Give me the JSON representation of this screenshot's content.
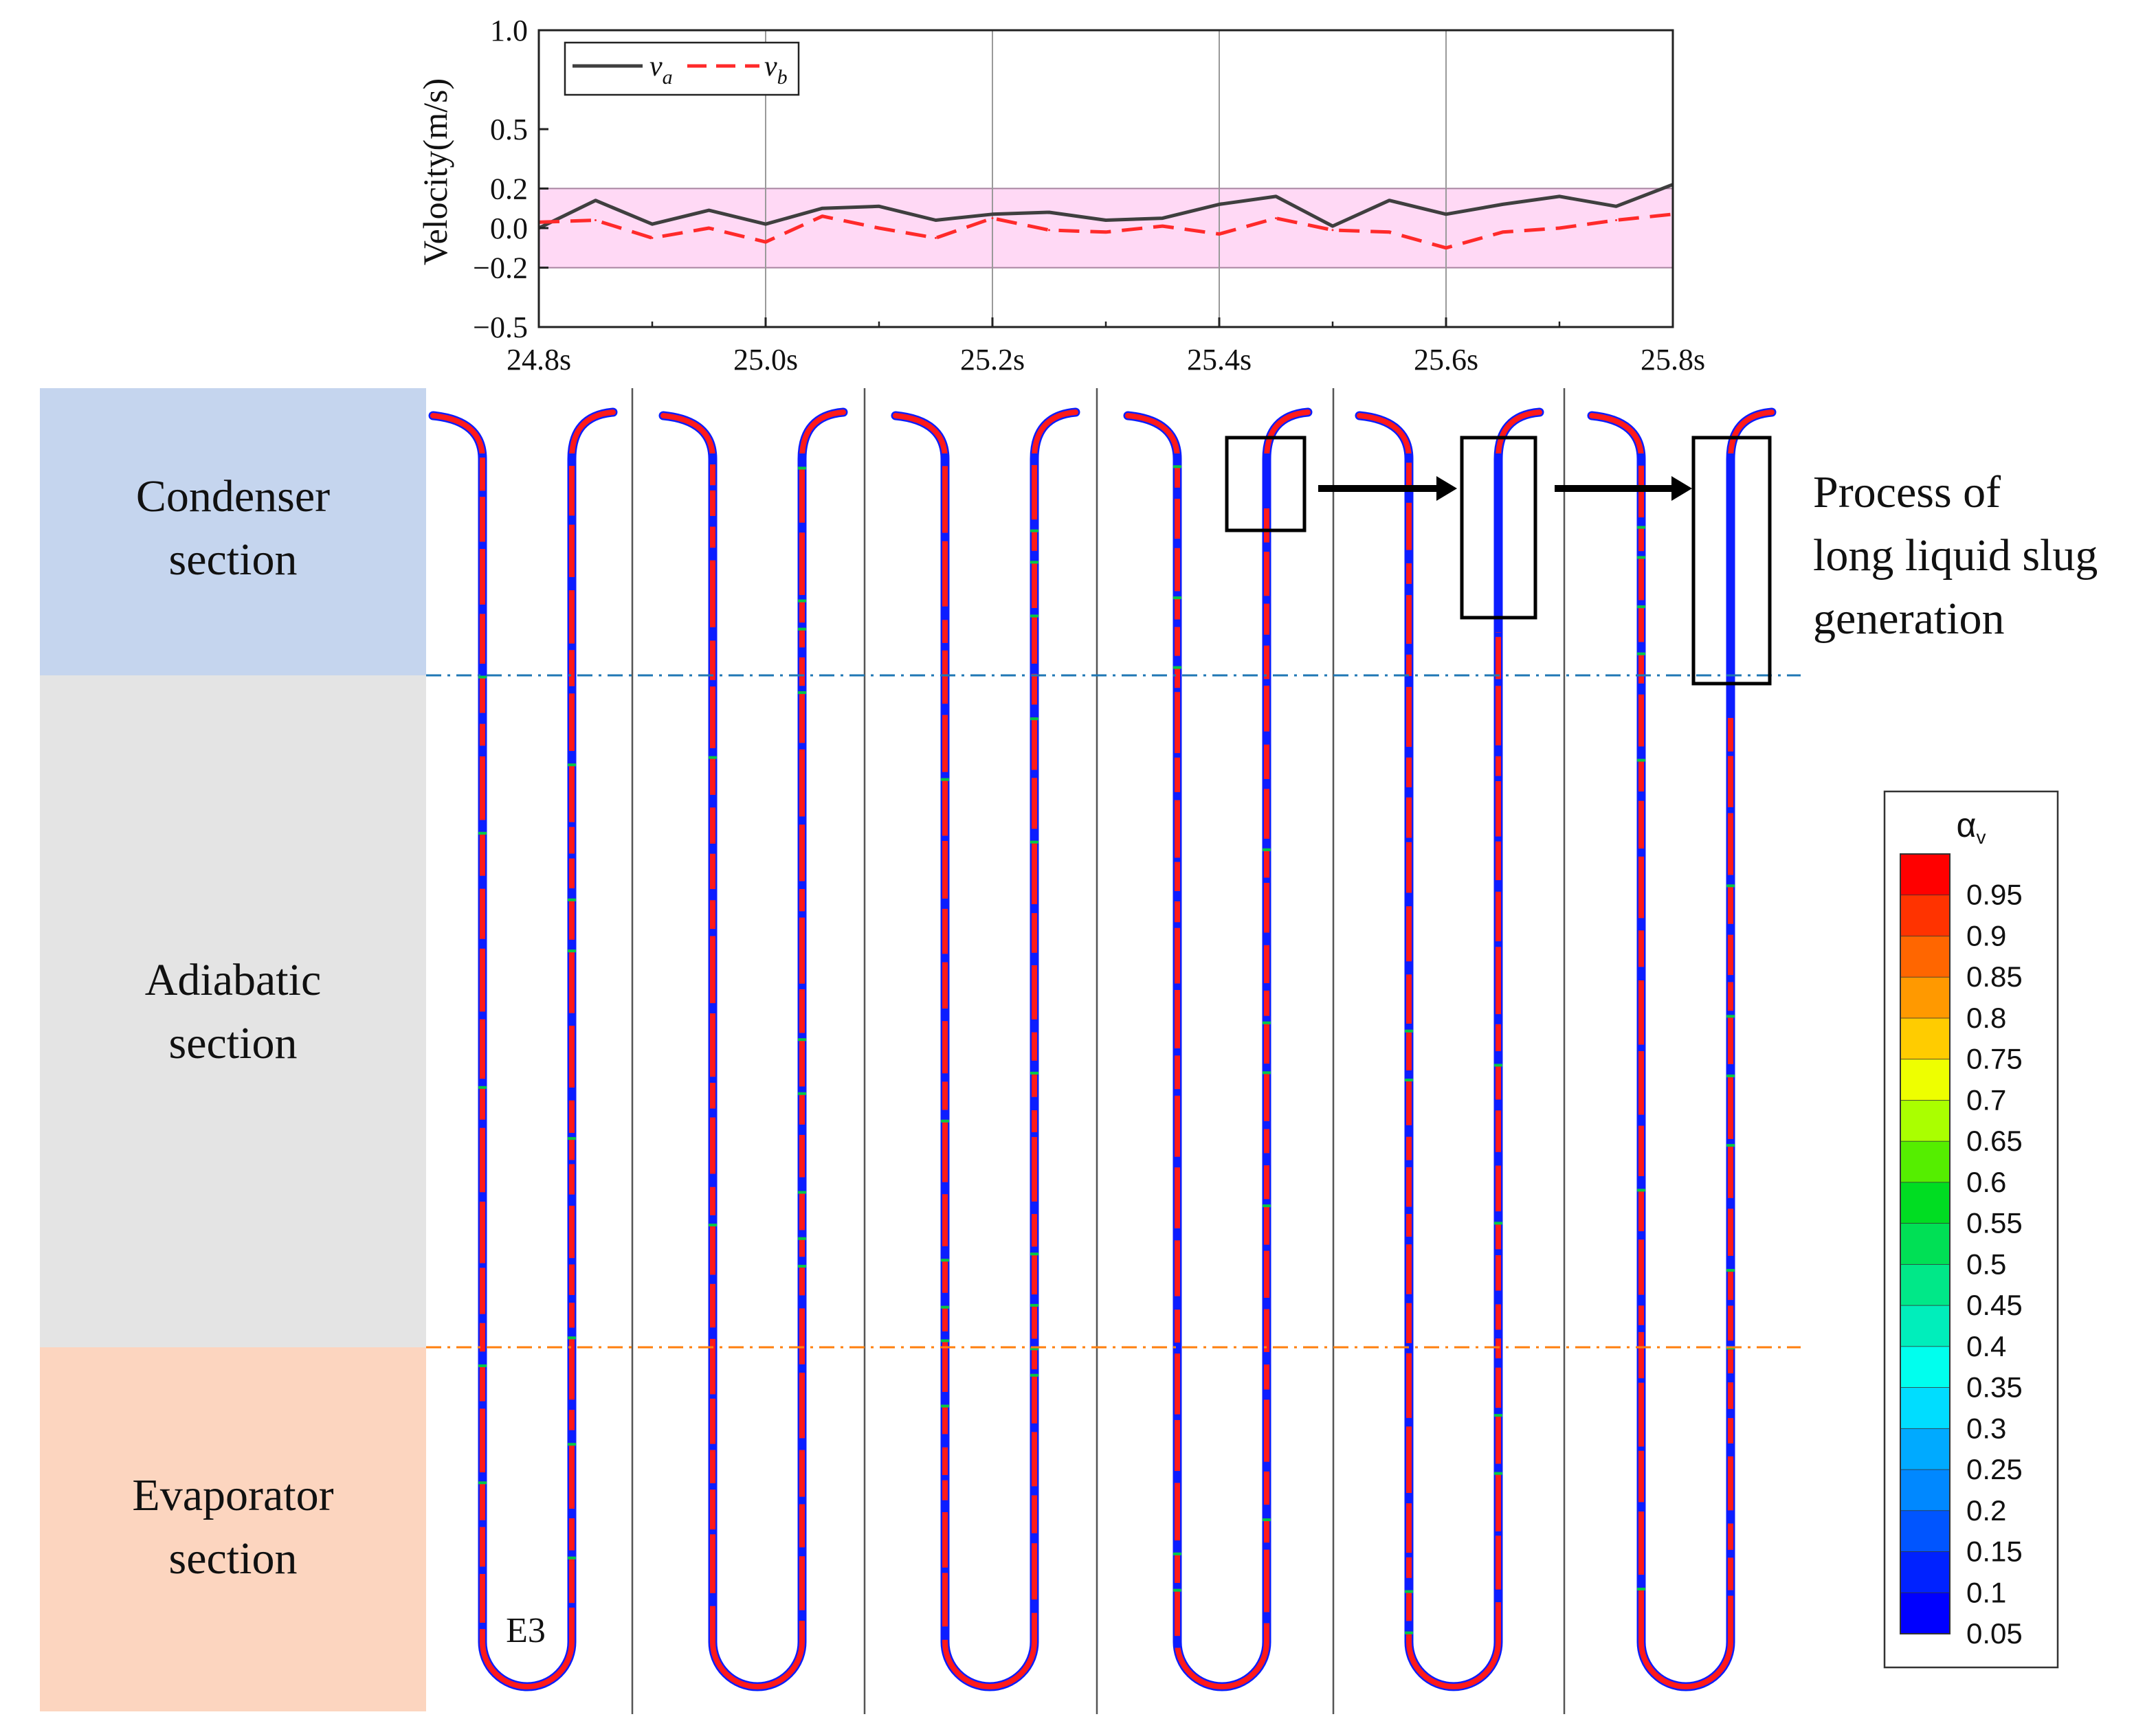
{
  "chart_data": {
    "type": "line",
    "ylabel": "Velocity(m/s)",
    "xlabel": "",
    "x_tick_labels": [
      "24.8s",
      "25.0s",
      "25.2s",
      "25.4s",
      "25.6s",
      "25.8s"
    ],
    "y_tick_labels": [
      "1.0",
      "0.5",
      "0.2",
      "0.0",
      "−0.2",
      "−0.5"
    ],
    "y_ticks": [
      1.0,
      0.5,
      0.2,
      0.0,
      -0.2,
      -0.5
    ],
    "xlim": [
      24.8,
      25.8
    ],
    "ylim": [
      -0.5,
      1.0
    ],
    "band": {
      "low": -0.2,
      "high": 0.2,
      "color": "#ffd9f5"
    },
    "grid": true,
    "legend": {
      "placement": "top-left",
      "entries": [
        {
          "name": "v",
          "subscript": "a",
          "color": "#3f3f3f",
          "style": "solid"
        },
        {
          "name": "v",
          "subscript": "b",
          "color": "#ff2a2a",
          "style": "dashed"
        }
      ]
    },
    "x": [
      24.8,
      24.85,
      24.9,
      24.95,
      25.0,
      25.05,
      25.1,
      25.15,
      25.2,
      25.25,
      25.3,
      25.35,
      25.4,
      25.45,
      25.5,
      25.55,
      25.6,
      25.65,
      25.7,
      25.75,
      25.8
    ],
    "series": [
      {
        "name": "va",
        "color": "#3f3f3f",
        "style": "solid",
        "values": [
          0.0,
          0.14,
          0.02,
          0.09,
          0.02,
          0.1,
          0.11,
          0.04,
          0.07,
          0.08,
          0.04,
          0.05,
          0.12,
          0.16,
          0.01,
          0.14,
          0.07,
          0.12,
          0.16,
          0.11,
          0.22
        ]
      },
      {
        "name": "vb",
        "color": "#ff2a2a",
        "style": "dashed",
        "values": [
          0.03,
          0.04,
          -0.05,
          0.0,
          -0.07,
          0.06,
          0.0,
          -0.05,
          0.05,
          -0.01,
          -0.02,
          0.01,
          -0.03,
          0.05,
          -0.01,
          -0.02,
          -0.1,
          -0.02,
          0.0,
          0.04,
          0.07
        ]
      }
    ]
  },
  "sections": {
    "condenser": {
      "line1": "Condenser",
      "line2": "section",
      "color": "#c5d5ee"
    },
    "adiabatic": {
      "line1": "Adiabatic",
      "line2": "section",
      "color": "#e4e4e4"
    },
    "evaporator": {
      "line1": "Evaporator",
      "line2": "section",
      "color": "#fcd5bf"
    }
  },
  "boundary_colors": {
    "condenser_adiabatic": "#1f77b4",
    "adiabatic_evaporator": "#ff7f0e"
  },
  "case_label": "E3",
  "annotation": {
    "line1": "Process of",
    "line2": "long liquid slug",
    "line3": "generation"
  },
  "colorbar": {
    "title": "α",
    "title_sub": "v",
    "colors": [
      "#ff0000",
      "#ff3300",
      "#ff6600",
      "#ff9900",
      "#ffcc00",
      "#eeff00",
      "#aaff00",
      "#55ee00",
      "#00dd22",
      "#00e055",
      "#00e888",
      "#00eebb",
      "#00ffee",
      "#00ddff",
      "#00aaff",
      "#0088ff",
      "#0055ff",
      "#0022ff",
      "#0000ff"
    ],
    "labels": [
      "0.95",
      "0.9",
      "0.85",
      "0.8",
      "0.75",
      "0.7",
      "0.65",
      "0.6",
      "0.55",
      "0.5",
      "0.45",
      "0.4",
      "0.35",
      "0.3",
      "0.25",
      "0.2",
      "0.15",
      "0.1",
      "0.05"
    ]
  },
  "tube_colors": {
    "vapor": "#ff1a1a",
    "liquid": "#0c1dff",
    "interface": "#00c84a"
  }
}
